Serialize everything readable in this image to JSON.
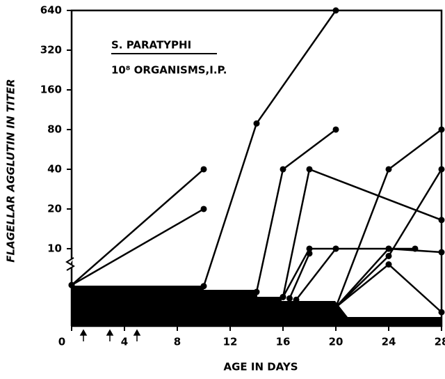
{
  "chart_data": {
    "type": "line",
    "y_label": "FLAGELLAR AGGLUTIN IN TITER",
    "x_label": "AGE IN DAYS",
    "annotations": [
      "S. PARATYPHI",
      "10⁸ ORGANISMS,I.P."
    ],
    "log_scale": true,
    "xlim": [
      0,
      28
    ],
    "xticks": [
      0,
      4,
      8,
      12,
      16,
      20,
      24,
      28
    ],
    "ylim": [
      2.56,
      640
    ],
    "yticks": [
      10,
      20,
      40,
      80,
      160,
      320,
      640
    ],
    "series": [
      {
        "color": "#000000",
        "x": [
          0,
          10
        ],
        "values": [
          5.3,
          40
        ]
      },
      {
        "color": "#000000",
        "x": [
          0,
          10
        ],
        "values": [
          5.3,
          20
        ]
      },
      {
        "color": "#000000",
        "x": [
          10,
          14,
          20
        ],
        "values": [
          5.2,
          89,
          640
        ]
      },
      {
        "color": "#000000",
        "x": [
          14,
          16,
          20
        ],
        "values": [
          4.7,
          40,
          80
        ]
      },
      {
        "color": "#000000",
        "x": [
          16,
          18,
          28
        ],
        "values": [
          4.3,
          40,
          16.5
        ]
      },
      {
        "color": "#000000",
        "x": [
          16,
          18,
          20,
          24,
          26
        ],
        "values": [
          4.3,
          10,
          10,
          10,
          10
        ]
      },
      {
        "color": "#000000",
        "x": [
          16.5,
          18
        ],
        "values": [
          4.2,
          9.2
        ]
      },
      {
        "color": "#000000",
        "x": [
          17,
          20
        ],
        "values": [
          4.1,
          10
        ]
      },
      {
        "color": "#000000",
        "x": [
          20,
          24,
          28
        ],
        "values": [
          3.6,
          40,
          80
        ]
      },
      {
        "color": "#000000",
        "x": [
          20,
          24,
          28
        ],
        "values": [
          3.6,
          10,
          9.4
        ]
      },
      {
        "color": "#000000",
        "x": [
          20,
          24,
          28
        ],
        "values": [
          3.6,
          8.8,
          40
        ]
      },
      {
        "color": "#000000",
        "x": [
          20,
          24,
          28
        ],
        "values": [
          3.6,
          7.6,
          3.3
        ]
      }
    ]
  }
}
